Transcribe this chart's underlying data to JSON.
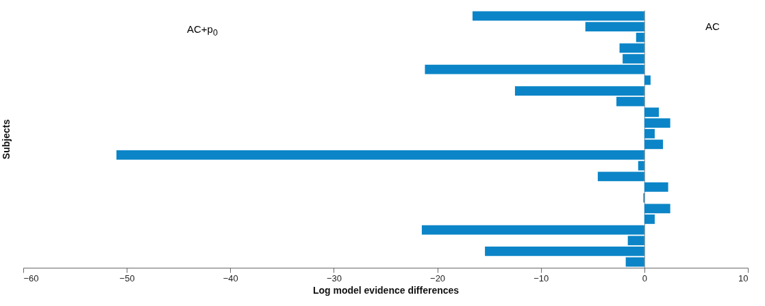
{
  "chart_data": {
    "type": "bar",
    "orientation": "horizontal",
    "xlabel": "Log model evidence differences",
    "ylabel": "Subjects",
    "categories": [
      null,
      null,
      null,
      null,
      null,
      null,
      null,
      null,
      null,
      null,
      null,
      null,
      null,
      null,
      null,
      null,
      null,
      null,
      null,
      null,
      null,
      null,
      null,
      null
    ],
    "values": [
      -16.6,
      -5.7,
      -0.8,
      -2.4,
      -2.1,
      -21.2,
      0.6,
      -12.5,
      -2.7,
      1.4,
      2.5,
      1.0,
      1.8,
      -51.0,
      -0.6,
      -4.5,
      2.3,
      -0.1,
      2.5,
      1.0,
      -21.5,
      -1.6,
      -15.4,
      -1.8
    ],
    "color": "#0b85c7",
    "xlim": [
      -60,
      10
    ],
    "xticks": [
      -60,
      -50,
      -40,
      -30,
      -20,
      -10,
      0,
      10
    ],
    "annotations": [
      "AC+p$_{0}$",
      "AC"
    ]
  }
}
